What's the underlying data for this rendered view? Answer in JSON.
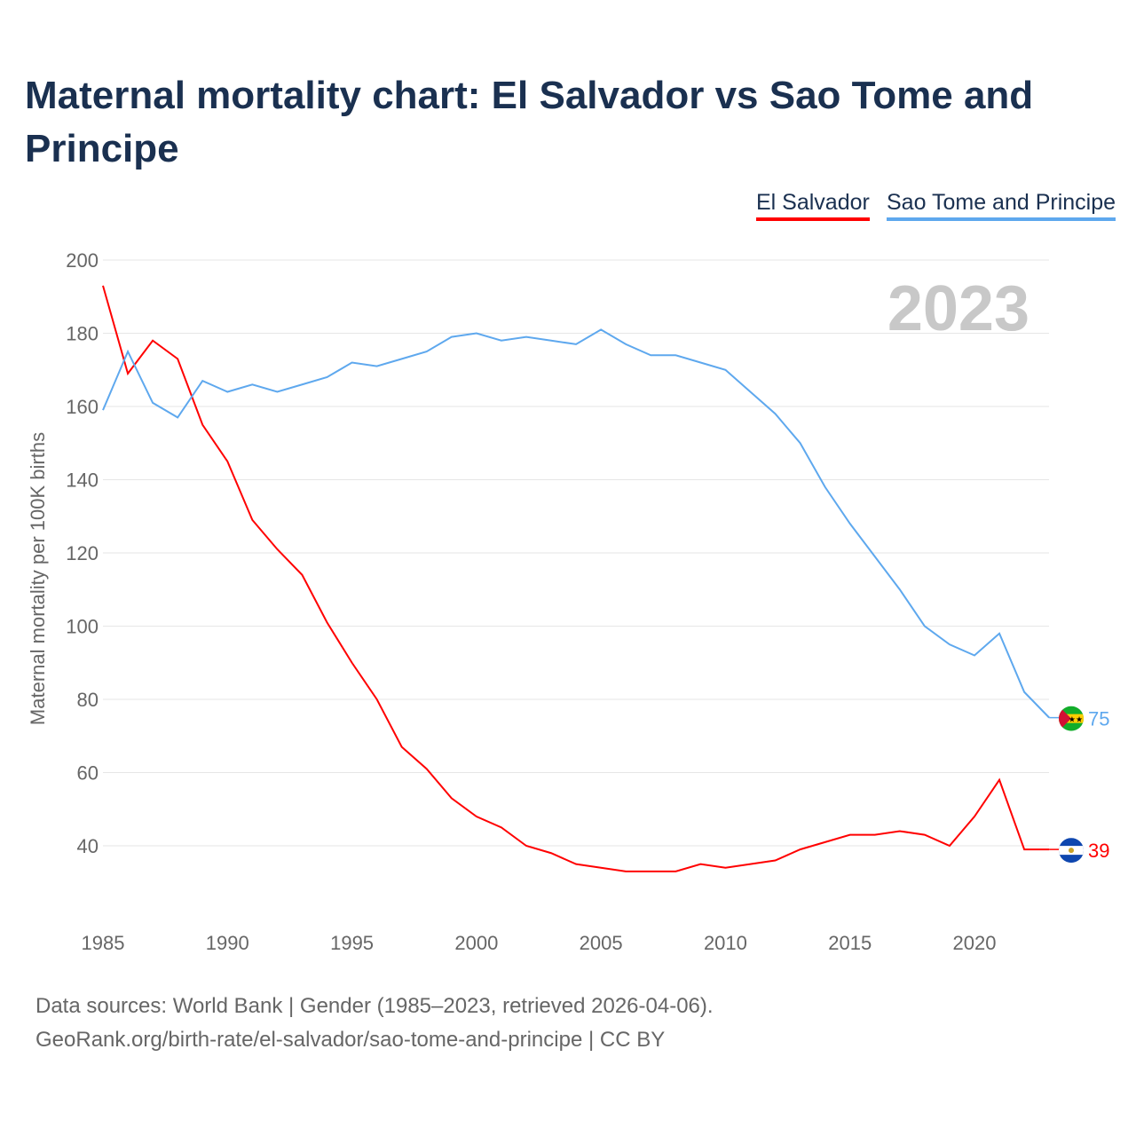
{
  "chart_data": {
    "type": "line",
    "title": "Maternal mortality chart: El Salvador vs Sao Tome and Principe",
    "xlabel": "",
    "ylabel": "Maternal mortality per 100K births",
    "xlim": [
      1985,
      2023
    ],
    "ylim": [
      20,
      200
    ],
    "yticks": [
      40,
      60,
      80,
      100,
      120,
      140,
      160,
      180,
      200
    ],
    "xticks": [
      1985,
      1990,
      1995,
      2000,
      2005,
      2010,
      2015,
      2020
    ],
    "grid": true,
    "legend_position": "top-right",
    "year_label": "2023",
    "x": [
      1985,
      1986,
      1987,
      1988,
      1989,
      1990,
      1991,
      1992,
      1993,
      1994,
      1995,
      1996,
      1997,
      1998,
      1999,
      2000,
      2001,
      2002,
      2003,
      2004,
      2005,
      2006,
      2007,
      2008,
      2009,
      2010,
      2011,
      2012,
      2013,
      2014,
      2015,
      2016,
      2017,
      2018,
      2019,
      2020,
      2021,
      2022,
      2023
    ],
    "series": [
      {
        "name": "El Salvador",
        "color": "#ff0000",
        "end_label": "39",
        "values": [
          193,
          169,
          178,
          173,
          155,
          145,
          129,
          121,
          114,
          101,
          90,
          80,
          67,
          61,
          53,
          48,
          45,
          40,
          38,
          35,
          34,
          33,
          33,
          33,
          35,
          34,
          35,
          36,
          39,
          41,
          43,
          43,
          44,
          43,
          40,
          48,
          58,
          39,
          39
        ]
      },
      {
        "name": "Sao Tome and Principe",
        "color": "#5ea8ee",
        "end_label": "75",
        "values": [
          159,
          175,
          161,
          157,
          167,
          164,
          166,
          164,
          166,
          168,
          172,
          171,
          173,
          175,
          179,
          180,
          178,
          179,
          178,
          177,
          181,
          177,
          174,
          174,
          172,
          170,
          164,
          158,
          150,
          138,
          128,
          119,
          110,
          100,
          95,
          92,
          98,
          82,
          75
        ]
      }
    ]
  },
  "footer": {
    "line1": "Data sources: World Bank | Gender (1985–2023, retrieved 2026-04-06).",
    "line2": "GeoRank.org/birth-rate/el-salvador/sao-tome-and-principe | CC BY"
  }
}
